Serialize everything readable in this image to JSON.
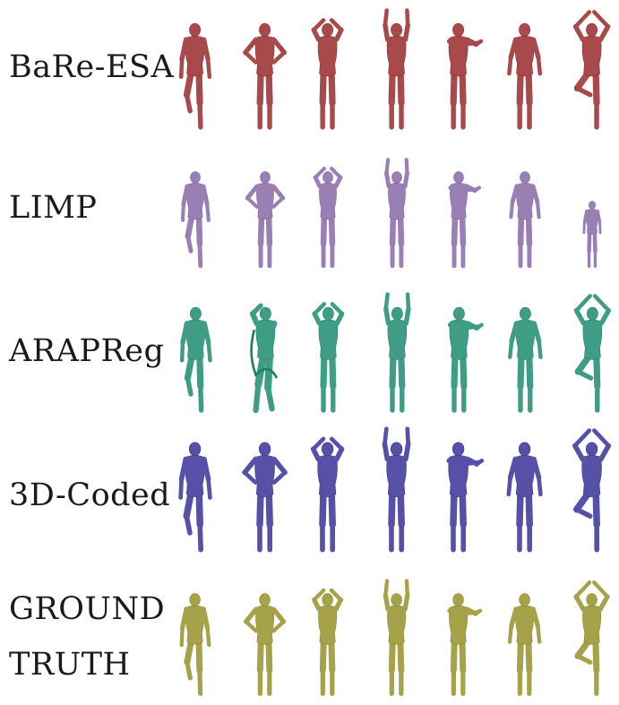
{
  "rows": [
    {
      "method": "BaRe-ESA",
      "color": "#a8494b",
      "poses": [
        "step-left-leg-raised",
        "hands-on-hips",
        "hands-behind-head",
        "arms-raised-high",
        "arms-extended-forward",
        "arms-down-relaxed",
        "tree-pose-arms-overhead"
      ]
    },
    {
      "method": "LIMP",
      "color": "#9a7fb5",
      "poses": [
        "step-left-leg-raised",
        "hands-on-hips",
        "hands-behind-head",
        "arms-raised-high",
        "arms-extended-forward",
        "arms-down-relaxed",
        "tree-pose-small"
      ]
    },
    {
      "method": "ARAPReg",
      "color": "#3f9c85",
      "poses": [
        "step-left-leg-raised",
        "distorted-twisted",
        "hands-behind-head",
        "arms-raised-high",
        "arms-extended-forward",
        "arms-down-relaxed",
        "tree-pose-arms-overhead"
      ]
    },
    {
      "method": "3D-Coded",
      "color": "#5650a8",
      "poses": [
        "step-left-leg-raised",
        "hands-on-hips",
        "hands-behind-head",
        "arms-raised-high",
        "arms-extended-forward",
        "arms-down-relaxed",
        "tree-pose-arms-overhead"
      ]
    },
    {
      "method_line1": "GROUND",
      "method_line2": "TRUTH",
      "color": "#a6a24a",
      "poses": [
        "step-left-leg-raised",
        "hands-on-hips",
        "hands-behind-head",
        "arms-raised-high",
        "arms-extended-forward",
        "arms-down-relaxed",
        "tree-pose-arms-overhead"
      ]
    }
  ]
}
